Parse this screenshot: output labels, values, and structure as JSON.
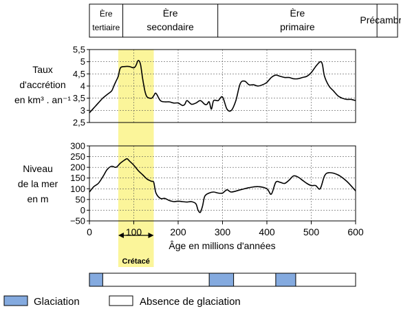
{
  "eras": [
    {
      "line1": "Ère",
      "line2": "tertiaire",
      "from": 0,
      "to": 65
    },
    {
      "line1": "Ère",
      "line2": "secondaire",
      "from": 65,
      "to": 250
    },
    {
      "line1": "Ère",
      "line2": "primaire",
      "from": 250,
      "to": 560
    },
    {
      "line1": "Précambrien",
      "line2": "",
      "from": 560,
      "to": 600
    }
  ],
  "highlight": {
    "label": "Crétacé",
    "tick_label": "100",
    "from": 65,
    "to": 145,
    "color": "#fbf59a"
  },
  "chart_data": [
    {
      "type": "line",
      "ylabel_lines": [
        "Taux",
        "d'accrétion",
        "en km³ . an⁻¹"
      ],
      "xlim": [
        0,
        600
      ],
      "ylim": [
        2.5,
        5.5
      ],
      "yticks": [
        "2,5",
        "3",
        "3,5",
        "4",
        "4,5",
        "5",
        "5,5"
      ],
      "ytick_values": [
        2.5,
        3,
        3.5,
        4,
        4.5,
        5,
        5.5
      ],
      "grid": true,
      "x": [
        0,
        10,
        20,
        30,
        40,
        50,
        55,
        60,
        65,
        70,
        80,
        90,
        100,
        105,
        110,
        115,
        120,
        125,
        130,
        140,
        145,
        150,
        160,
        170,
        180,
        190,
        200,
        210,
        215,
        220,
        230,
        240,
        250,
        260,
        265,
        270,
        275,
        280,
        290,
        300,
        310,
        320,
        330,
        340,
        350,
        360,
        370,
        380,
        390,
        400,
        410,
        420,
        430,
        440,
        450,
        460,
        470,
        480,
        490,
        500,
        510,
        520,
        525,
        530,
        540,
        550,
        560,
        570,
        580,
        590,
        600
      ],
      "y": [
        2.9,
        3.1,
        3.3,
        3.5,
        3.65,
        3.8,
        4.0,
        4.2,
        4.4,
        4.75,
        4.8,
        4.8,
        4.75,
        4.85,
        5.05,
        4.9,
        4.3,
        3.8,
        3.55,
        3.5,
        3.6,
        3.7,
        3.4,
        3.35,
        3.35,
        3.3,
        3.3,
        3.2,
        3.25,
        3.4,
        3.25,
        3.3,
        3.4,
        3.25,
        3.25,
        3.35,
        3.05,
        3.4,
        3.4,
        3.55,
        3.05,
        3.0,
        3.4,
        4.1,
        4.2,
        4.05,
        4.05,
        4.0,
        4.05,
        4.15,
        4.35,
        4.45,
        4.4,
        4.35,
        4.35,
        4.3,
        4.3,
        4.35,
        4.4,
        4.55,
        4.8,
        5.0,
        4.9,
        4.4,
        4.0,
        3.8,
        3.6,
        3.5,
        3.45,
        3.45,
        3.4
      ]
    },
    {
      "type": "line",
      "ylabel_lines": [
        "Niveau",
        "de la mer",
        "en m"
      ],
      "xlabel": "Âge en millions d'années",
      "xlim": [
        0,
        600
      ],
      "ylim": [
        -50,
        300
      ],
      "xticks": [
        "0",
        "100",
        "200",
        "300",
        "400",
        "500",
        "600"
      ],
      "xtick_values": [
        0,
        100,
        200,
        300,
        400,
        500,
        600
      ],
      "yticks": [
        "−50",
        "0",
        "50",
        "100",
        "150",
        "200",
        "250",
        "300"
      ],
      "ytick_values": [
        -50,
        0,
        50,
        100,
        150,
        200,
        250,
        300
      ],
      "grid": true,
      "x": [
        0,
        10,
        20,
        30,
        40,
        50,
        60,
        70,
        80,
        85,
        90,
        100,
        110,
        120,
        130,
        140,
        145,
        150,
        160,
        170,
        180,
        190,
        200,
        210,
        220,
        230,
        240,
        245,
        250,
        255,
        260,
        270,
        280,
        290,
        300,
        310,
        320,
        340,
        360,
        380,
        400,
        410,
        420,
        430,
        440,
        450,
        460,
        470,
        480,
        490,
        500,
        510,
        520,
        530,
        540,
        560,
        580,
        600
      ],
      "y": [
        85,
        110,
        125,
        155,
        190,
        205,
        200,
        220,
        235,
        240,
        230,
        210,
        185,
        165,
        145,
        135,
        130,
        80,
        55,
        55,
        45,
        40,
        42,
        40,
        38,
        40,
        30,
        0,
        -10,
        20,
        65,
        80,
        85,
        80,
        80,
        95,
        85,
        95,
        105,
        110,
        100,
        75,
        130,
        130,
        125,
        140,
        160,
        155,
        140,
        125,
        115,
        115,
        100,
        160,
        175,
        165,
        135,
        90
      ]
    }
  ],
  "glaciation_bar": {
    "from": 0,
    "to": 600,
    "periods": [
      [
        0,
        30
      ],
      [
        270,
        325
      ],
      [
        420,
        465
      ]
    ],
    "fill_color": "#84aadf",
    "empty_color": "#ffffff"
  },
  "legend": {
    "glaciation_label": "Glaciation",
    "glaciation_color": "#84aadf",
    "absence_label": "Absence de glaciation"
  }
}
